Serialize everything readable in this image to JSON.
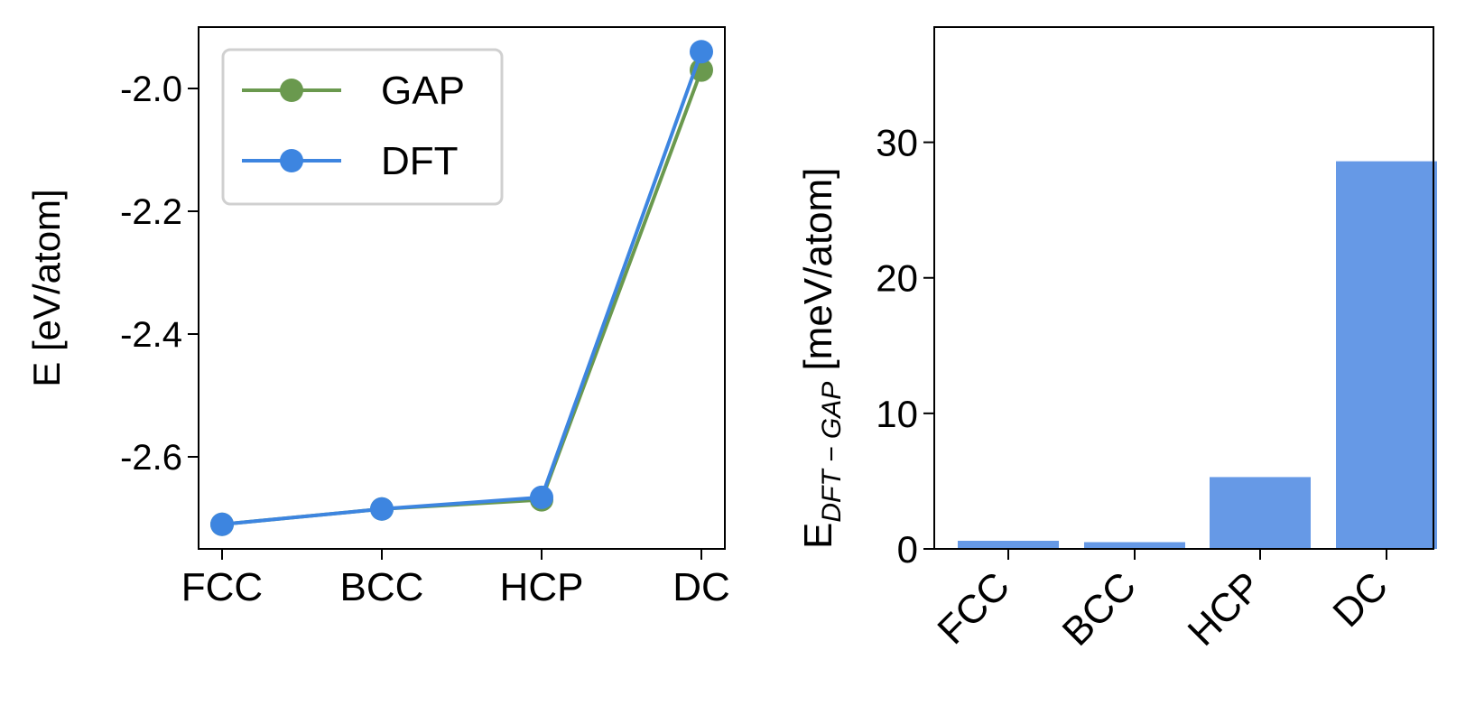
{
  "chart_data": [
    {
      "type": "line",
      "categories": [
        "FCC",
        "BCC",
        "HCP",
        "DC"
      ],
      "series": [
        {
          "name": "GAP",
          "values": [
            -2.71,
            -2.685,
            -2.67,
            -1.97
          ],
          "color": "#6a994e"
        },
        {
          "name": "DFT",
          "values": [
            -2.71,
            -2.685,
            -2.666,
            -1.94
          ],
          "color": "#3d85e0"
        }
      ],
      "xlabel": "",
      "ylabel": "E [eV/atom]",
      "ylim": [
        -2.75,
        -1.9
      ],
      "yticks": [
        -2.0,
        -2.2,
        -2.4,
        -2.6
      ],
      "ytick_labels": [
        "-2.0",
        "-2.2",
        "-2.4",
        "-2.6"
      ],
      "legend_position": "top-left"
    },
    {
      "type": "bar",
      "categories": [
        "FCC",
        "BCC",
        "HCP",
        "DC"
      ],
      "values": [
        0.6,
        0.5,
        5.3,
        28.6
      ],
      "bar_color": "#6699e6",
      "ylabel_main": "E",
      "ylabel_sub": "DFT − GAP",
      "ylabel_unit": " [meV/atom]",
      "ylim": [
        0,
        38.5
      ],
      "yticks": [
        0,
        10,
        20,
        30
      ],
      "ytick_labels": [
        "0",
        "10",
        "20",
        "30"
      ],
      "xtick_rotation": "45 degrees"
    }
  ]
}
